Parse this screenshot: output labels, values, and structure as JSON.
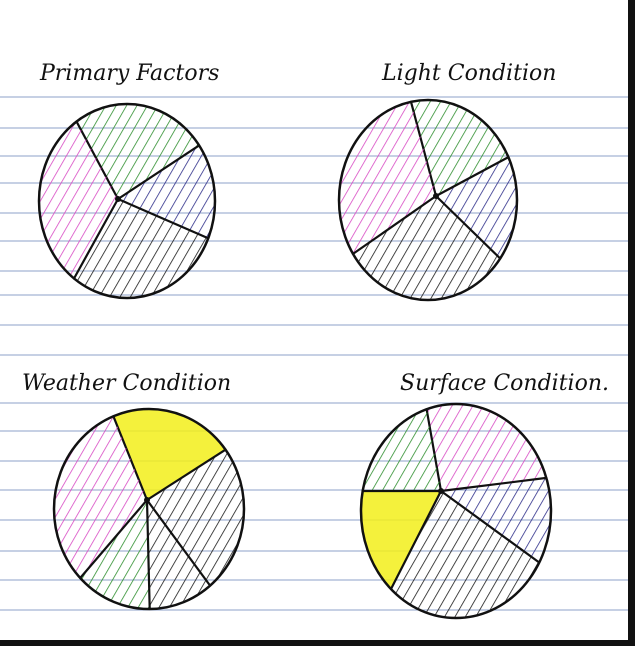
{
  "page": {
    "paper_color": "#ffffff",
    "rule_color": "#8da0c8",
    "ink_color": "#111111"
  },
  "colors": {
    "green": "#2f8f2f",
    "navy": "#2e2e8a",
    "black": "#1a1a1a",
    "magenta": "#d84bc4",
    "yellow": "#f2ee1a"
  },
  "chart_data": [
    {
      "type": "pie",
      "title": "Primary Factors",
      "slices": [
        {
          "color": "green",
          "value": 25,
          "fill": "hatch"
        },
        {
          "color": "navy",
          "value": 16,
          "fill": "hatch"
        },
        {
          "color": "black",
          "value": 29,
          "fill": "hatch"
        },
        {
          "color": "magenta",
          "value": 30,
          "fill": "hatch"
        }
      ]
    },
    {
      "type": "pie",
      "title": "Light Condition",
      "slices": [
        {
          "color": "green",
          "value": 21,
          "fill": "hatch"
        },
        {
          "color": "navy",
          "value": 17,
          "fill": "hatch"
        },
        {
          "color": "black",
          "value": 31,
          "fill": "hatch"
        },
        {
          "color": "magenta",
          "value": 31,
          "fill": "hatch"
        }
      ]
    },
    {
      "type": "pie",
      "title": "Weather Condition",
      "slices": [
        {
          "color": "yellow",
          "value": 21,
          "fill": "solid"
        },
        {
          "color": "black",
          "value": 24,
          "fill": "hatch"
        },
        {
          "color": "black",
          "value": 11,
          "fill": "hatch"
        },
        {
          "color": "green",
          "value": 13,
          "fill": "hatch"
        },
        {
          "color": "magenta",
          "value": 31,
          "fill": "hatch"
        }
      ]
    },
    {
      "type": "pie",
      "title": "Surface Condition.",
      "slices": [
        {
          "color": "magenta",
          "value": 25,
          "fill": "hatch"
        },
        {
          "color": "navy",
          "value": 13,
          "fill": "hatch"
        },
        {
          "color": "black",
          "value": 29,
          "fill": "hatch"
        },
        {
          "color": "yellow",
          "value": 16,
          "fill": "solid"
        },
        {
          "color": "green",
          "value": 17,
          "fill": "hatch"
        }
      ]
    }
  ]
}
